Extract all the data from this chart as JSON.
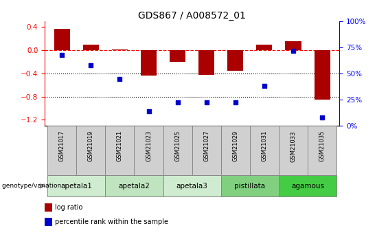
{
  "title": "GDS867 / A008572_01",
  "samples": [
    "GSM21017",
    "GSM21019",
    "GSM21021",
    "GSM21023",
    "GSM21025",
    "GSM21027",
    "GSM21029",
    "GSM21031",
    "GSM21033",
    "GSM21035"
  ],
  "log_ratio": [
    0.37,
    0.1,
    0.01,
    -0.44,
    -0.2,
    -0.42,
    -0.35,
    0.1,
    0.16,
    -0.85
  ],
  "percentile_rank": [
    68,
    58,
    45,
    14,
    22,
    22,
    22,
    38,
    72,
    8
  ],
  "groups": [
    {
      "label": "apetala1",
      "start": 0,
      "end": 2,
      "color": "#d0ecd0"
    },
    {
      "label": "apetala2",
      "start": 2,
      "end": 4,
      "color": "#c0e4c0"
    },
    {
      "label": "apetala3",
      "start": 4,
      "end": 6,
      "color": "#d0ecd0"
    },
    {
      "label": "pistillata",
      "start": 6,
      "end": 8,
      "color": "#80d080"
    },
    {
      "label": "agamous",
      "start": 8,
      "end": 10,
      "color": "#44cc44"
    }
  ],
  "bar_color": "#aa0000",
  "dot_color": "#0000cc",
  "ylim_left": [
    -1.3,
    0.5
  ],
  "ylim_right": [
    0,
    100
  ],
  "yticks_left": [
    -1.2,
    -0.8,
    -0.4,
    0.0,
    0.4
  ],
  "yticks_right": [
    0,
    25,
    50,
    75,
    100
  ],
  "ytick_labels_right": [
    "0%",
    "25%",
    "50%",
    "75%",
    "100%"
  ],
  "hline_y": 0.0,
  "dotted_lines": [
    -0.4,
    -0.8
  ],
  "legend_items": [
    {
      "label": "log ratio",
      "color": "#aa0000"
    },
    {
      "label": "percentile rank within the sample",
      "color": "#0000cc"
    }
  ],
  "genotype_label": "genotype/variation",
  "title_fontsize": 10,
  "tick_fontsize": 7.5,
  "bar_width": 0.55,
  "sample_cell_color": "#d0d0d0",
  "cell_edge_color": "#888888"
}
